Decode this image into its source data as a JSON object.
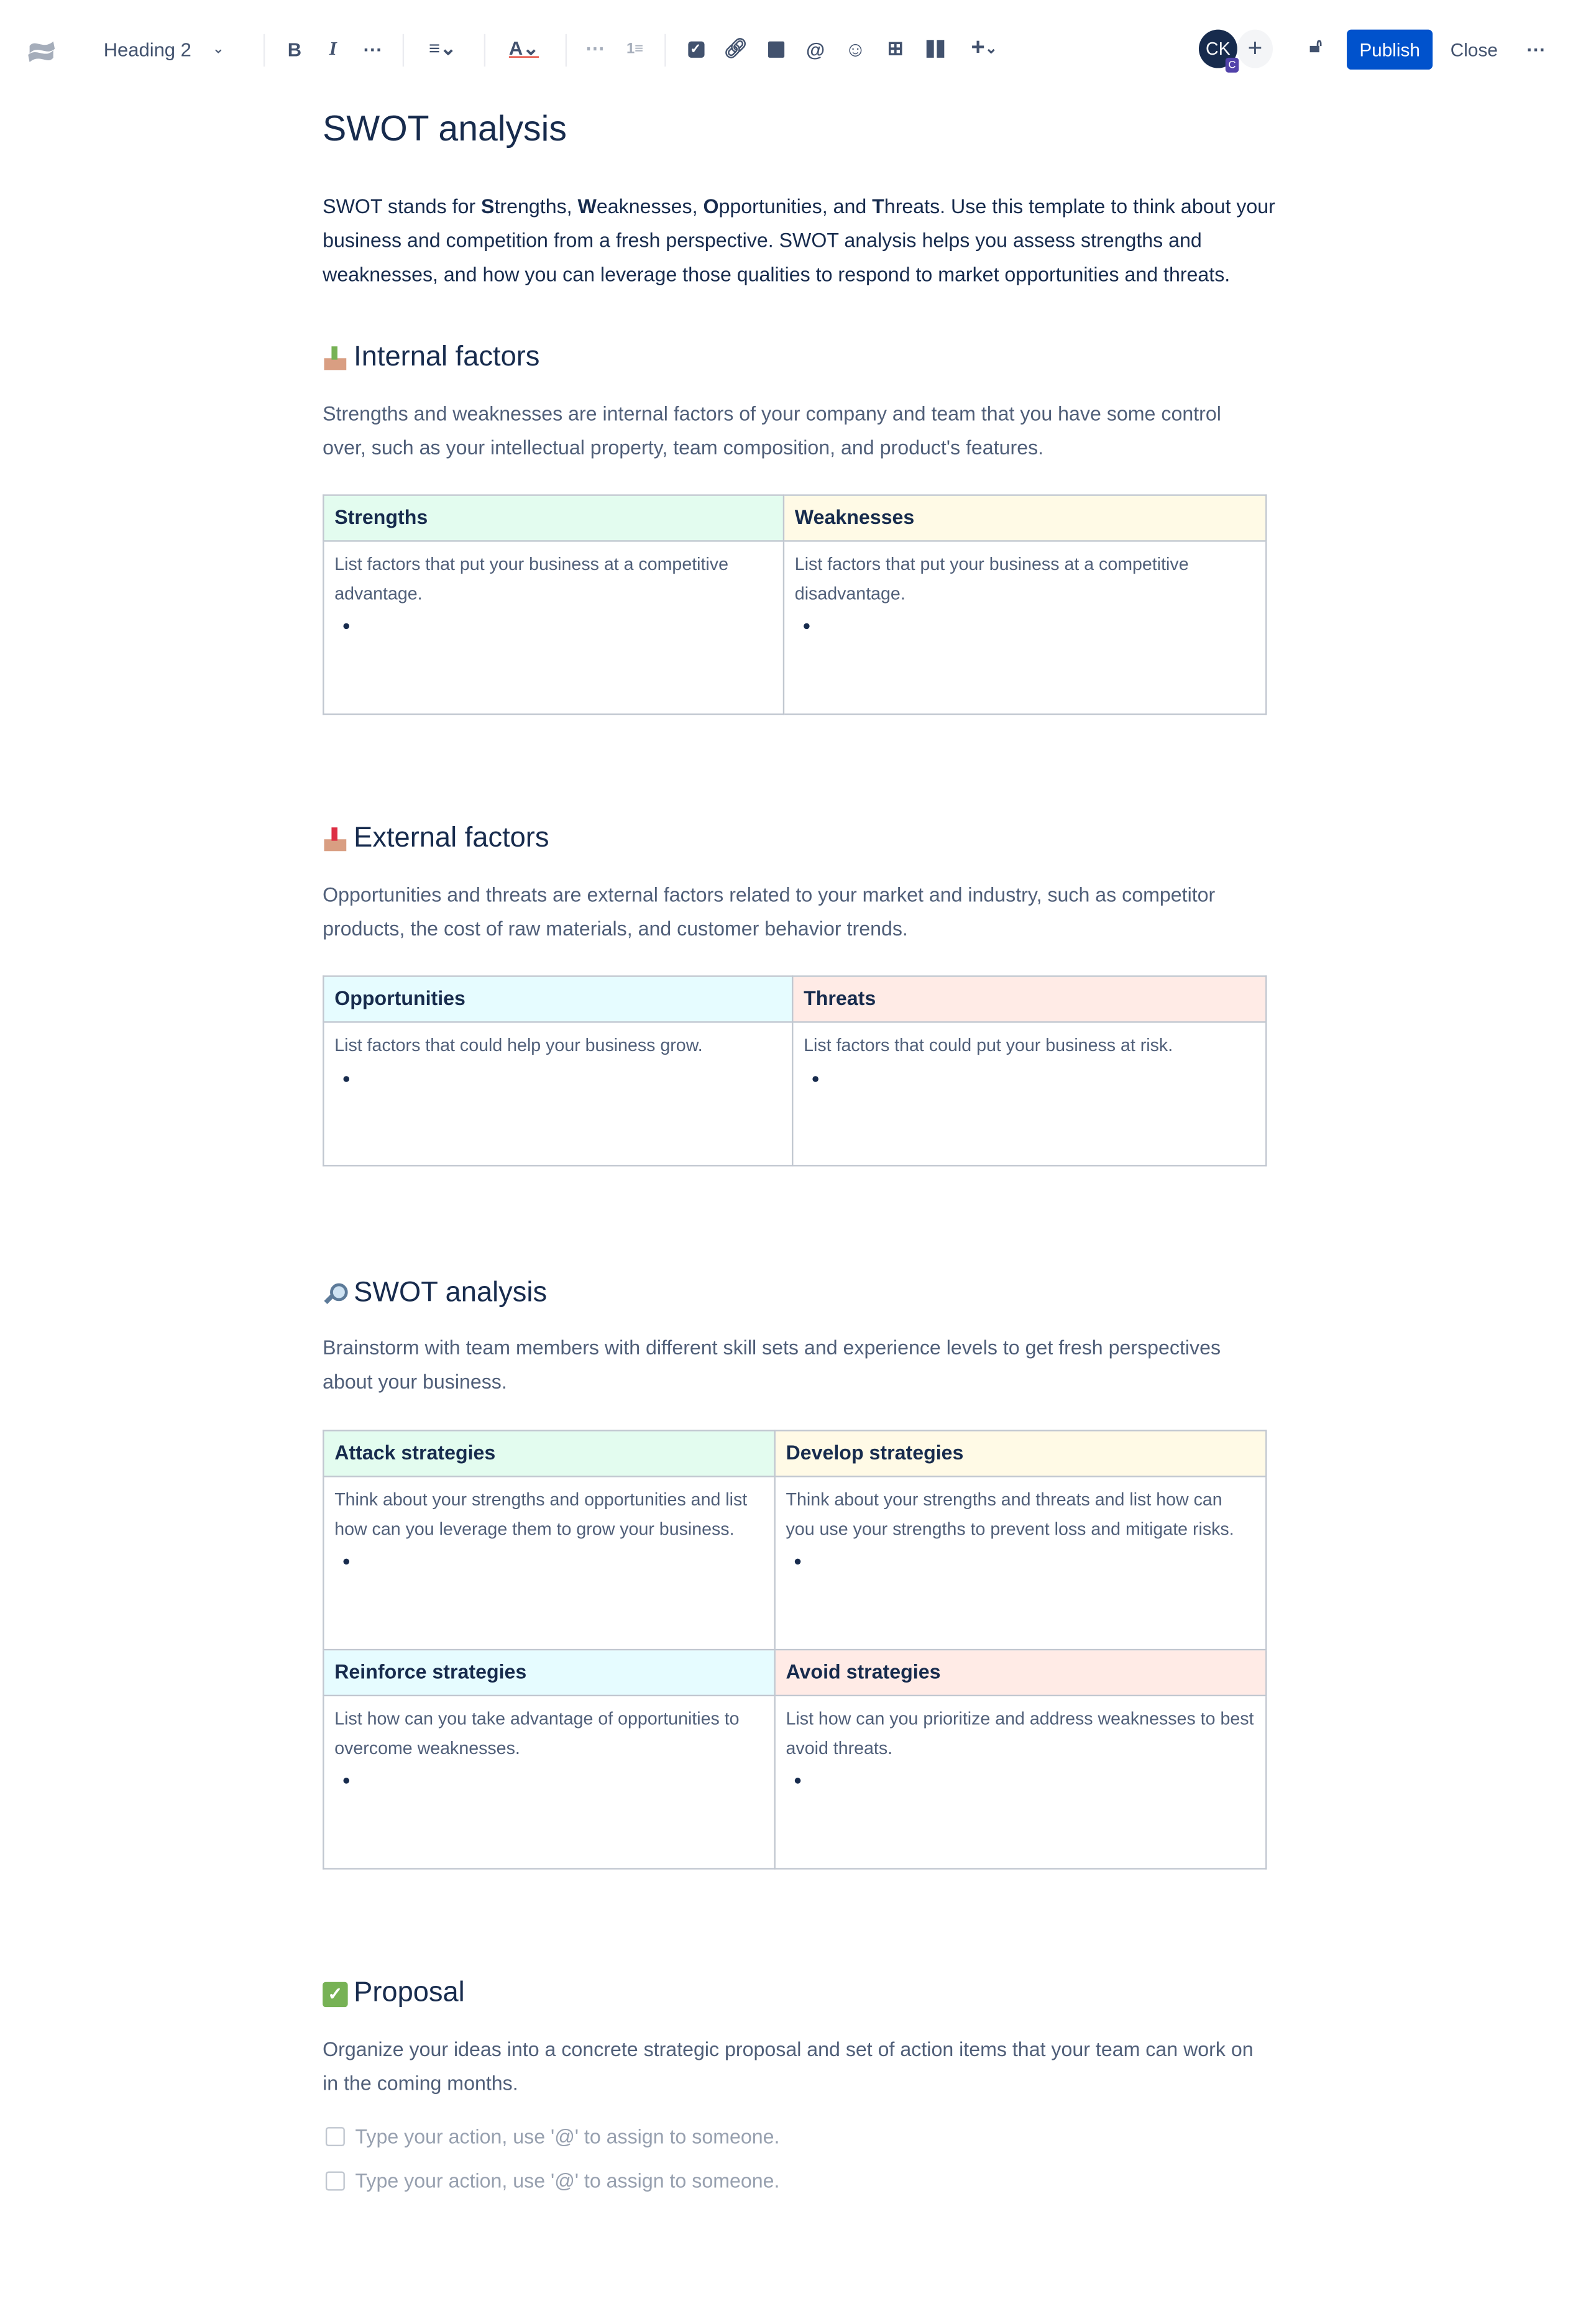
{
  "toolbar": {
    "text_style": "Heading 2",
    "avatar_initials": "CK",
    "avatar_badge": "C",
    "publish_label": "Publish",
    "close_label": "Close",
    "colors": {
      "publish": "#0052cc",
      "avatar": "#172b4d",
      "badge": "#5243aa"
    }
  },
  "page": {
    "title": "SWOT analysis",
    "intro": {
      "prefix": "SWOT stands for ",
      "parts": [
        {
          "b": "S",
          "t": "trengths, "
        },
        {
          "b": "W",
          "t": "eaknesses, "
        },
        {
          "b": "O",
          "t": "pportunities, and "
        },
        {
          "b": "T",
          "t": "hreats."
        }
      ],
      "suffix": " Use this template to think about your business and competition from a fresh perspective. SWOT analysis helps you assess strengths and weaknesses, and how you can leverage those qualities to respond to market opportunities and threats."
    },
    "internal": {
      "icon": "inbox-tray-emoji",
      "heading": "Internal factors",
      "desc": "Strengths and weaknesses are internal factors of your company and team that you have some control over, such as your intellectual property, team composition, and product's features.",
      "cols": [
        {
          "header": "Strengths",
          "body": "List factors that put your business at a competitive advantage.",
          "color": "#e3fcef"
        },
        {
          "header": "Weaknesses",
          "body": "List factors that put your business at a competitive disadvantage.",
          "color": "#fffae6"
        }
      ]
    },
    "external": {
      "icon": "outbox-tray-emoji",
      "heading": "External factors",
      "desc": "Opportunities and threats are external factors related to your market and industry, such as competitor products, the cost of raw materials, and customer behavior trends.",
      "cols": [
        {
          "header": "Opportunities",
          "body": "List factors that could help your business grow.",
          "color": "#e6fcff"
        },
        {
          "header": "Threats",
          "body": "List factors that could put your business at risk.",
          "color": "#ffebe6"
        }
      ]
    },
    "swot": {
      "icon": "magnifying-glass-emoji",
      "heading": "SWOT analysis",
      "desc": "Brainstorm with team members with different skill sets and experience levels to get fresh perspectives about your business.",
      "cells": [
        {
          "header": "Attack strategies",
          "body": "Think about your strengths and opportunities and list how can you leverage them to grow your business.",
          "color": "#e3fcef"
        },
        {
          "header": "Develop strategies",
          "body": "Think about your strengths and threats and list how can you use your strengths to prevent loss and mitigate risks.",
          "color": "#fffae6"
        },
        {
          "header": "Reinforce strategies",
          "body": "List how can you take advantage of opportunities to overcome weaknesses.",
          "color": "#e6fcff"
        },
        {
          "header": "Avoid strategies",
          "body": "List how can you prioritize and address weaknesses to best avoid threats.",
          "color": "#ffebe6"
        }
      ]
    },
    "proposal": {
      "icon": "check-mark-button-emoji",
      "heading": "Proposal",
      "desc": "Organize your ideas into a concrete strategic proposal and set of action items that your team can work on in the coming months.",
      "tasks": [
        {
          "placeholder": "Type your action, use '@' to assign to someone.",
          "checked": false
        },
        {
          "placeholder": "Type your action, use '@' to assign to someone.",
          "checked": false
        }
      ]
    }
  }
}
